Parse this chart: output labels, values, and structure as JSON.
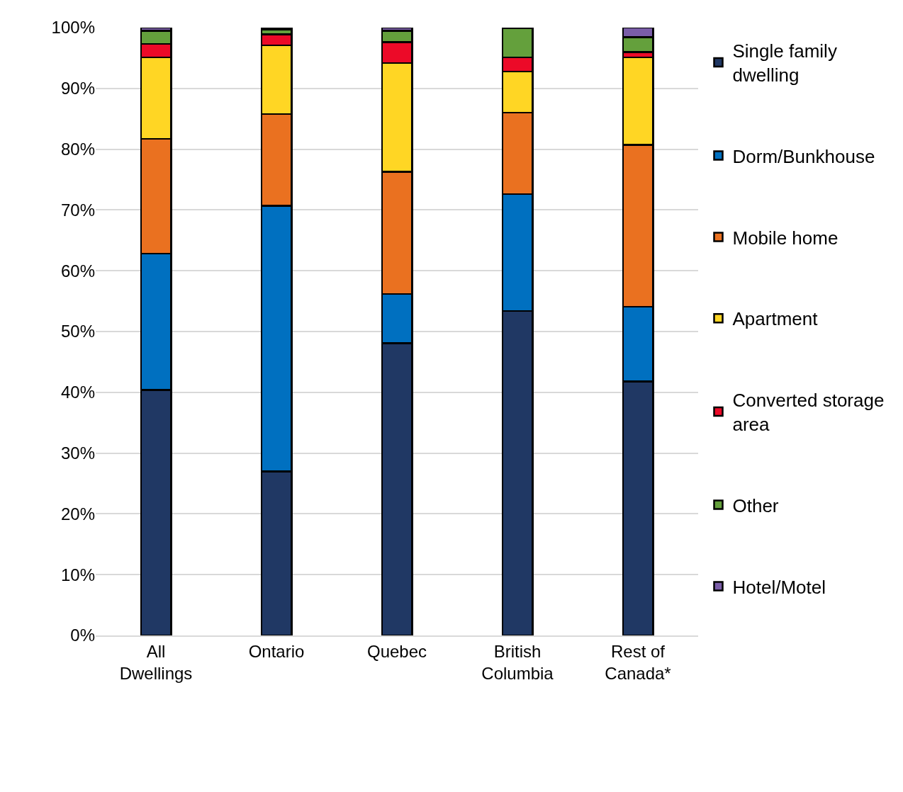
{
  "chart_data": {
    "type": "bar",
    "stacked": true,
    "categories": [
      "All Dwellings",
      "Ontario",
      "Quebec",
      "British Columbia",
      "Rest of Canada*"
    ],
    "series": [
      {
        "name": "Single family dwelling",
        "color": "#203864",
        "values": [
          40.4,
          27.0,
          48.1,
          53.4,
          41.8
        ]
      },
      {
        "name": "Dorm/Bunkhouse",
        "color": "#0070c0",
        "values": [
          22.4,
          43.7,
          8.1,
          19.2,
          12.3
        ]
      },
      {
        "name": "Mobile home",
        "color": "#ea7120",
        "values": [
          18.9,
          15.1,
          20.1,
          13.4,
          26.6
        ]
      },
      {
        "name": "Apartment",
        "color": "#ffd624",
        "values": [
          13.4,
          11.3,
          17.9,
          6.8,
          14.4
        ]
      },
      {
        "name": "Converted storage area",
        "color": "#ec0a28",
        "values": [
          2.2,
          1.8,
          3.4,
          2.3,
          0.9
        ]
      },
      {
        "name": "Other",
        "color": "#64a03c",
        "values": [
          2.2,
          0.8,
          1.9,
          4.8,
          2.4
        ]
      },
      {
        "name": "Hotel/Motel",
        "color": "#7a5da8",
        "values": [
          0.5,
          0.3,
          0.5,
          0.1,
          1.6
        ]
      }
    ],
    "ylim": [
      0,
      100
    ],
    "yticks": [
      {
        "value": 0,
        "label": "0%"
      },
      {
        "value": 10,
        "label": "10%"
      },
      {
        "value": 20,
        "label": "20%"
      },
      {
        "value": 30,
        "label": "30%"
      },
      {
        "value": 40,
        "label": "40%"
      },
      {
        "value": 50,
        "label": "50%"
      },
      {
        "value": 60,
        "label": "60%"
      },
      {
        "value": 70,
        "label": "70%"
      },
      {
        "value": 80,
        "label": "80%"
      },
      {
        "value": 90,
        "label": "90%"
      },
      {
        "value": 100,
        "label": "100%"
      }
    ],
    "grid": "y",
    "legend": "right"
  }
}
